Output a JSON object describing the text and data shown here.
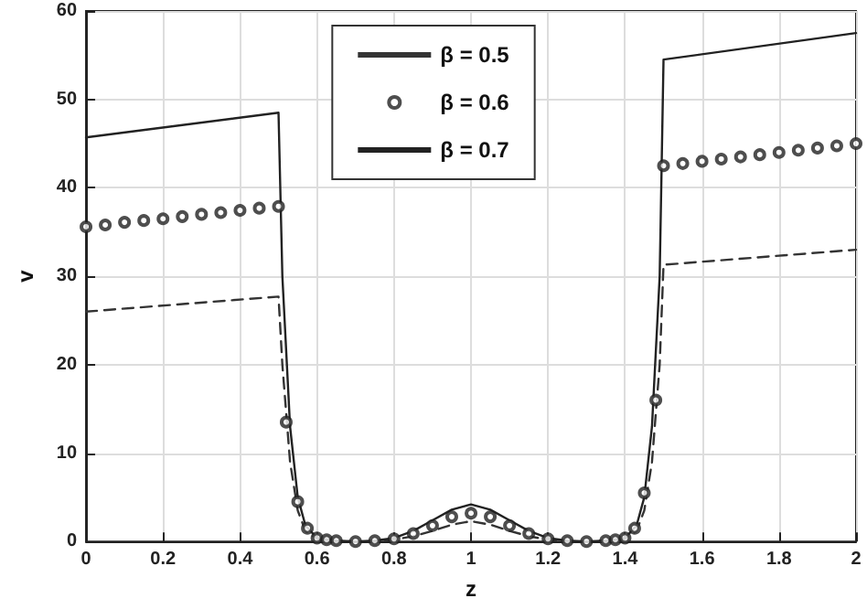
{
  "chart_data": {
    "type": "line",
    "xlabel": "z",
    "ylabel": "v",
    "xlim": [
      0,
      2
    ],
    "xticks": [
      0,
      0.2,
      0.4,
      0.6,
      0.8,
      1,
      1.2,
      1.4,
      1.6,
      1.8,
      2
    ],
    "ylim": [
      0,
      60
    ],
    "yticks": [
      0,
      10,
      20,
      30,
      40,
      50,
      60
    ],
    "grid": true,
    "legend": "top",
    "series": [
      {
        "name": "β = 0.5",
        "color": "#333333",
        "line_style": "dashed",
        "marker": "none",
        "x": [
          0,
          0.5,
          0.51,
          0.53,
          0.55,
          0.57,
          0.6,
          0.65,
          0.7,
          0.75,
          0.8,
          0.85,
          0.9,
          0.95,
          1,
          1.05,
          1.1,
          1.15,
          1.2,
          1.25,
          1.3,
          1.35,
          1.4,
          1.43,
          1.45,
          1.47,
          1.49,
          1.5,
          2
        ],
        "values": [
          26,
          27.7,
          20,
          9,
          3.5,
          1.2,
          0.3,
          0.1,
          0,
          0,
          0.2,
          0.6,
          1.2,
          1.9,
          2.3,
          1.9,
          1.2,
          0.6,
          0.2,
          0,
          0,
          0.1,
          0.3,
          1.2,
          3.5,
          9,
          20,
          31.3,
          33
        ]
      },
      {
        "name": "β = 0.6",
        "type": "scatter",
        "color": "#222222",
        "marker": "circle",
        "x": [
          0,
          0.05,
          0.1,
          0.15,
          0.2,
          0.25,
          0.3,
          0.35,
          0.4,
          0.45,
          0.5,
          0.52,
          0.55,
          0.575,
          0.6,
          0.625,
          0.65,
          0.7,
          0.75,
          0.8,
          0.85,
          0.9,
          0.95,
          1,
          1.05,
          1.1,
          1.15,
          1.2,
          1.25,
          1.3,
          1.35,
          1.375,
          1.4,
          1.425,
          1.45,
          1.48,
          1.5,
          1.55,
          1.6,
          1.65,
          1.7,
          1.75,
          1.8,
          1.85,
          1.9,
          1.95,
          2
        ],
        "values": [
          35.6,
          35.8,
          36.1,
          36.3,
          36.5,
          36.75,
          37,
          37.2,
          37.45,
          37.7,
          37.9,
          13.5,
          4.5,
          1.5,
          0.4,
          0.2,
          0.1,
          0,
          0.1,
          0.3,
          0.9,
          1.8,
          2.8,
          3.2,
          2.8,
          1.8,
          0.9,
          0.3,
          0.1,
          0,
          0.1,
          0.2,
          0.4,
          1.5,
          5.5,
          16,
          42.5,
          42.75,
          43,
          43.25,
          43.5,
          43.75,
          44,
          44.25,
          44.5,
          44.75,
          45
        ]
      },
      {
        "name": "β = 0.7",
        "color": "#222222",
        "line_style": "solid",
        "marker": "none",
        "x": [
          0,
          0.5,
          0.51,
          0.53,
          0.55,
          0.57,
          0.6,
          0.65,
          0.7,
          0.75,
          0.8,
          0.85,
          0.9,
          0.95,
          1,
          1.05,
          1.1,
          1.15,
          1.2,
          1.25,
          1.3,
          1.35,
          1.4,
          1.43,
          1.45,
          1.47,
          1.49,
          1.5,
          2
        ],
        "values": [
          45.7,
          48.5,
          30,
          13,
          5,
          1.8,
          0.4,
          0.1,
          0,
          0.1,
          0.4,
          1.2,
          2.4,
          3.6,
          4.2,
          3.6,
          2.4,
          1.2,
          0.4,
          0.1,
          0,
          0.1,
          0.4,
          1.8,
          5,
          13,
          30,
          54.5,
          57.5
        ]
      }
    ]
  }
}
